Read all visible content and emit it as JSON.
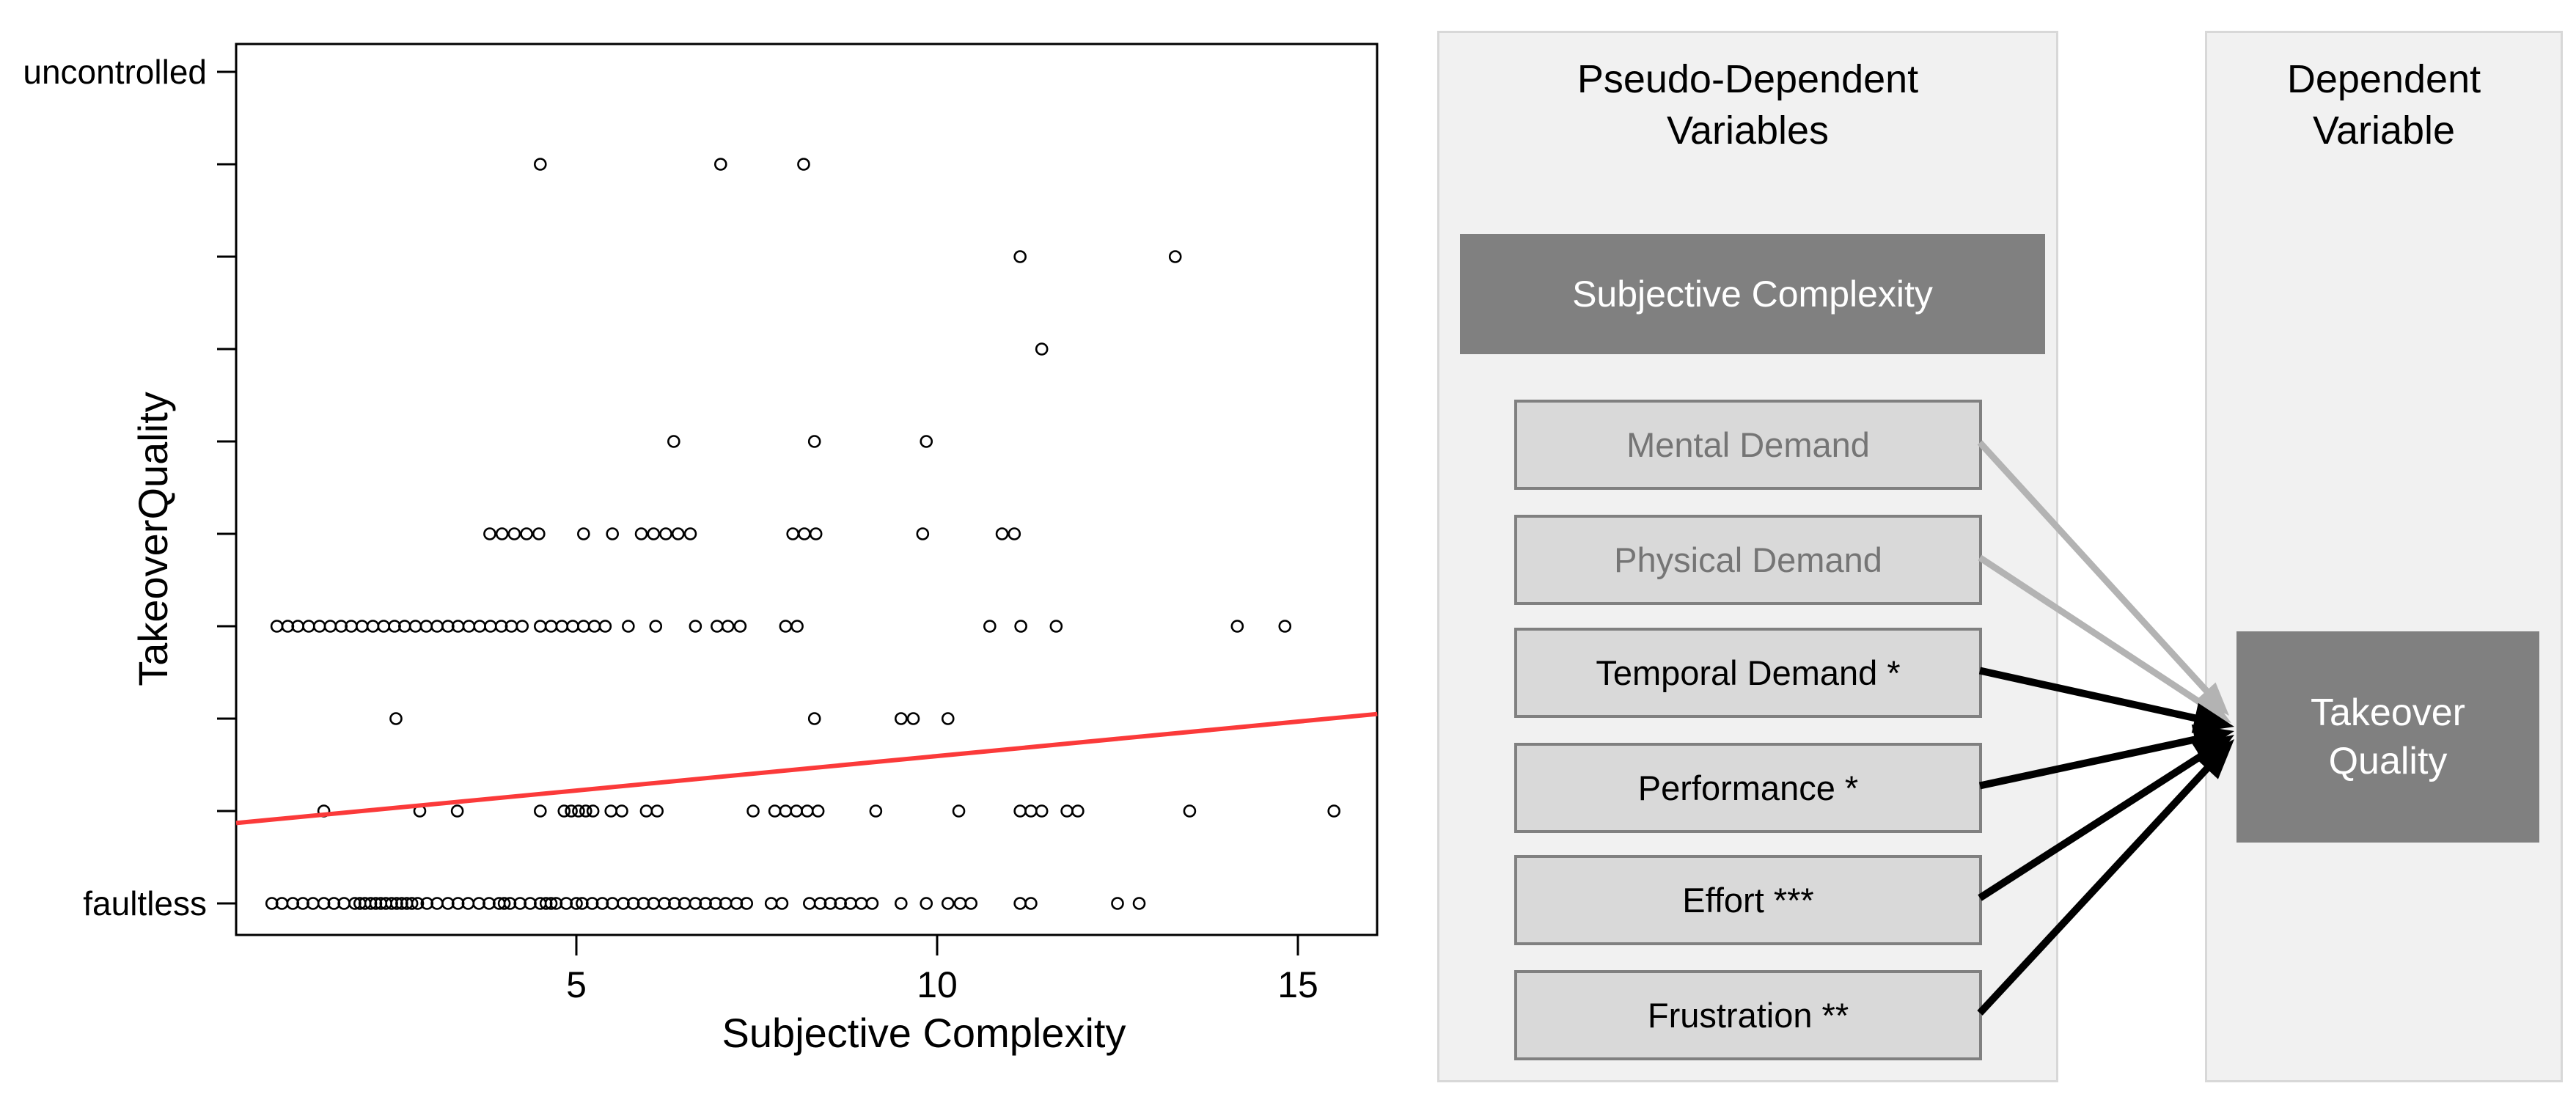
{
  "chart_data": {
    "type": "scatter",
    "title": "",
    "xlabel": "Subjective Complexity",
    "ylabel": "TakeoverQuality",
    "x_ticks": [
      5,
      10,
      15
    ],
    "x_range": [
      0.3,
      16.1
    ],
    "y_levels": 10,
    "y_tick_labels": {
      "1": "faultless",
      "10": "uncontrolled"
    },
    "grid": false,
    "legend": "none",
    "point_style": {
      "marker": "open-circle",
      "color": "#000000"
    },
    "points_by_level": {
      "1": [
        0.78,
        0.92,
        1.07,
        1.21,
        1.35,
        1.5,
        1.64,
        1.78,
        1.93,
        2.0,
        2.07,
        2.15,
        2.22,
        2.29,
        2.36,
        2.44,
        2.51,
        2.58,
        2.65,
        2.72,
        2.8,
        2.93,
        3.07,
        3.22,
        3.36,
        3.5,
        3.65,
        3.79,
        3.93,
        4.0,
        4.08,
        4.22,
        4.36,
        4.5,
        4.58,
        4.65,
        4.72,
        4.86,
        5.0,
        5.08,
        5.22,
        5.36,
        5.5,
        5.65,
        5.79,
        5.93,
        6.07,
        6.22,
        6.36,
        6.5,
        6.65,
        6.79,
        6.93,
        7.07,
        7.22,
        7.36,
        7.7,
        7.85,
        8.23,
        8.38,
        8.52,
        8.66,
        8.8,
        8.95,
        9.1,
        9.5,
        9.85,
        10.15,
        10.32,
        10.47,
        11.15,
        11.3,
        12.5,
        12.8
      ],
      "2": [
        1.5,
        2.83,
        3.35,
        4.5,
        4.83,
        4.93,
        5.03,
        5.13,
        5.23,
        5.48,
        5.63,
        5.97,
        6.12,
        7.45,
        7.75,
        7.9,
        8.05,
        8.2,
        8.35,
        9.15,
        10.3,
        11.15,
        11.3,
        11.45,
        11.8,
        11.95,
        13.5,
        15.5
      ],
      "3": [
        2.5,
        8.3,
        9.5,
        9.67,
        10.15
      ],
      "4": [
        0.85,
        1.0,
        1.14,
        1.29,
        1.44,
        1.59,
        1.74,
        1.88,
        2.03,
        2.18,
        2.33,
        2.48,
        2.62,
        2.77,
        2.92,
        3.07,
        3.22,
        3.36,
        3.51,
        3.66,
        3.81,
        3.96,
        4.1,
        4.25,
        4.5,
        4.65,
        4.8,
        4.95,
        5.1,
        5.25,
        5.4,
        5.72,
        6.1,
        6.65,
        6.95,
        7.1,
        7.27,
        7.9,
        8.06,
        10.73,
        11.16,
        11.65,
        14.16,
        14.82
      ],
      "5": [
        3.8,
        3.97,
        4.14,
        4.31,
        4.48,
        5.1,
        5.5,
        5.9,
        6.07,
        6.24,
        6.41,
        6.58,
        8.0,
        8.16,
        8.32,
        9.8,
        10.9,
        11.07
      ],
      "6": [
        6.35,
        8.3,
        9.85
      ],
      "7": [
        11.45
      ],
      "8": [
        11.15,
        13.3
      ],
      "9": [
        4.5,
        7.0,
        8.15
      ],
      "10": []
    },
    "regression_line": {
      "x_start": 0.285,
      "level_start": 1.87,
      "x_end": 16.1,
      "level_end": 3.05,
      "color": "#fb3a3a"
    }
  },
  "diagram": {
    "pseudo_panel": {
      "title_line1": "Pseudo-Dependent",
      "title_line2": "Variables",
      "highlight_box": "Subjective Complexity",
      "variables": [
        {
          "label": "Mental Demand",
          "text_color": "#757575",
          "arrow_color": "#b3b3b3"
        },
        {
          "label": "Physical Demand",
          "text_color": "#757575",
          "arrow_color": "#b3b3b3"
        },
        {
          "label": "Temporal Demand *",
          "text_color": "#000000",
          "arrow_color": "#000000"
        },
        {
          "label": "Performance *",
          "text_color": "#000000",
          "arrow_color": "#000000"
        },
        {
          "label": "Effort ***",
          "text_color": "#000000",
          "arrow_color": "#000000"
        },
        {
          "label": "Frustration **",
          "text_color": "#000000",
          "arrow_color": "#000000"
        }
      ]
    },
    "dependent_panel": {
      "title_line1": "Dependent",
      "title_line2": "Variable",
      "target_box_line1": "Takeover",
      "target_box_line2": "Quality"
    },
    "colors": {
      "panel_bg": "#f1f1f1",
      "panel_border": "#d8d8d8",
      "box_dark": "#808080",
      "box_light": "#d9d9d9",
      "box_border": "#808080",
      "text_on_dark": "#ffffff",
      "grey_text": "#757575",
      "grey_arrow": "#b3b3b3",
      "black_arrow": "#000000"
    }
  }
}
